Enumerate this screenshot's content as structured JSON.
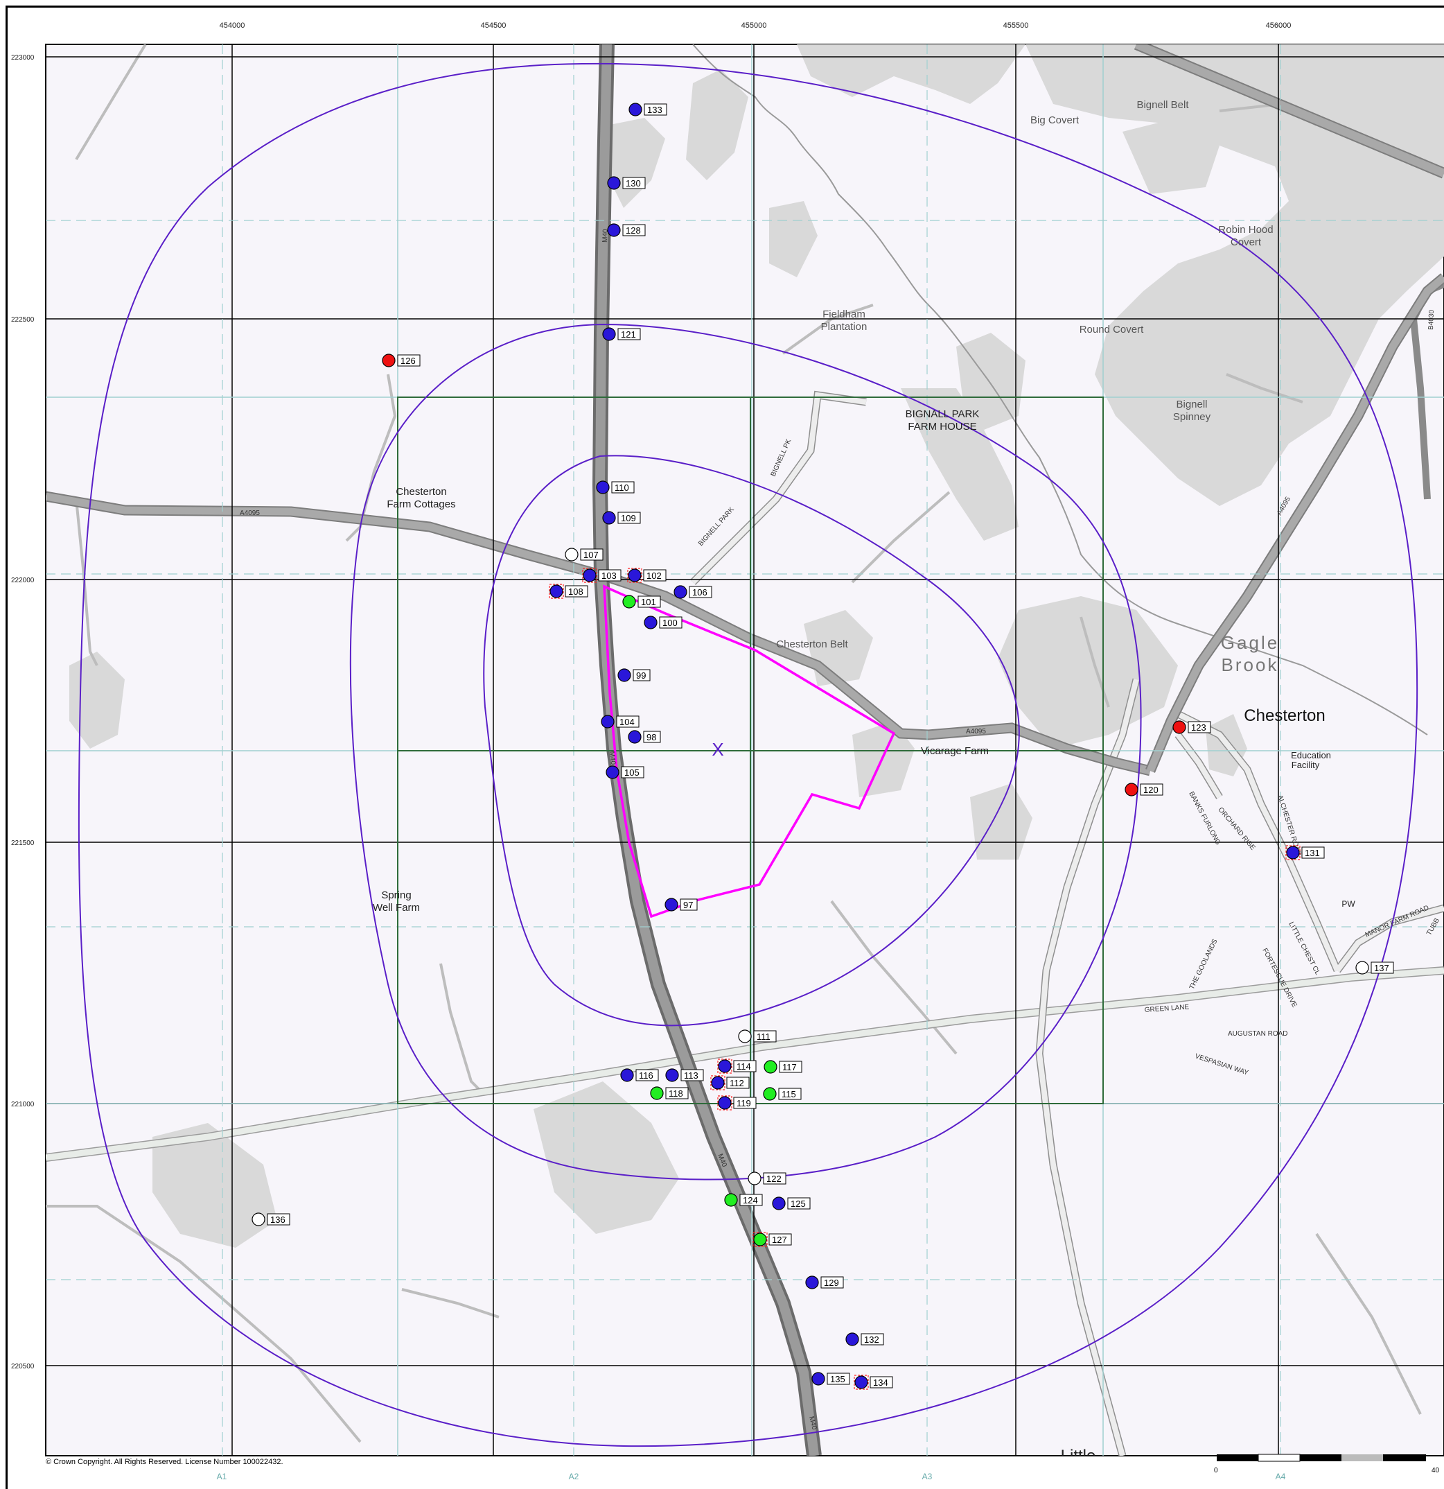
{
  "map": {
    "easting_labels": [
      "454000",
      "454500",
      "455000",
      "455500",
      "456000"
    ],
    "northing_labels": [
      "223000",
      "222500",
      "222000",
      "221500",
      "221000",
      "220500"
    ],
    "column_labels": [
      "A1",
      "A2",
      "A3",
      "A4"
    ],
    "copyright": "© Crown Copyright. All Rights Reserved. License Number 100022432.",
    "scale_label_zero": "0",
    "scale_label_end": "40",
    "site_marker": "X",
    "colors": {
      "site_boundary": "#ff00ff",
      "buffer_rings": "#5a1fc8",
      "grid": "#000000",
      "subgrid": "#9fd0d0",
      "survey_grid": "#2e6b3a",
      "road_major": "#8a8a8a",
      "road_minor": "#dcdcdc",
      "woodland": "#d9d9d9",
      "background": "#f7f5fa"
    },
    "place_names": [
      {
        "key": "big_covert",
        "text": "Big Covert"
      },
      {
        "key": "bignell_belt",
        "text": "Bignell Belt"
      },
      {
        "key": "robin_hood_1",
        "text": "Robin Hood"
      },
      {
        "key": "robin_hood_2",
        "text": "Covert"
      },
      {
        "key": "fieldham_1",
        "text": "Fieldham"
      },
      {
        "key": "fieldham_2",
        "text": "Plantation"
      },
      {
        "key": "round_covert",
        "text": "Round Covert"
      },
      {
        "key": "bignall_park_1",
        "text": "BIGNALL PARK"
      },
      {
        "key": "bignall_park_2",
        "text": "FARM HOUSE"
      },
      {
        "key": "bignell_spinney_1",
        "text": "Bignell"
      },
      {
        "key": "bignell_spinney_2",
        "text": "Spinney"
      },
      {
        "key": "chesterton_farm_1",
        "text": "Chesterton"
      },
      {
        "key": "chesterton_farm_2",
        "text": "Farm Cottages"
      },
      {
        "key": "chesterton_belt",
        "text": "Chesterton Belt"
      },
      {
        "key": "vicarage_farm",
        "text": "Vicarage Farm"
      },
      {
        "key": "gagle",
        "text": "Gagle"
      },
      {
        "key": "brook",
        "text": "Brook"
      },
      {
        "key": "chesterton",
        "text": "Chesterton"
      },
      {
        "key": "education_1",
        "text": "Education"
      },
      {
        "key": "education_2",
        "text": "Facility"
      },
      {
        "key": "spring_1",
        "text": "Spring"
      },
      {
        "key": "spring_2",
        "text": "Well Farm"
      },
      {
        "key": "pw",
        "text": "PW"
      },
      {
        "key": "little",
        "text": "Little"
      }
    ],
    "road_labels": [
      {
        "key": "a4095_w",
        "text": "A4095"
      },
      {
        "key": "a4095_e",
        "text": "A4095"
      },
      {
        "key": "a4095_ne",
        "text": "A4095"
      },
      {
        "key": "m40_n",
        "text": "M40"
      },
      {
        "key": "m40_mid",
        "text": "M40"
      },
      {
        "key": "m40_s",
        "text": "M40"
      },
      {
        "key": "m40_s2",
        "text": "M40"
      },
      {
        "key": "green_lane",
        "text": "GREEN LANE"
      },
      {
        "key": "b4030",
        "text": "B4030"
      },
      {
        "key": "bignell_park_rd",
        "text": "BIGNELL PARK"
      },
      {
        "key": "bignell_pk",
        "text": "BIGNELL PK"
      },
      {
        "key": "manor_farm_rd",
        "text": "MANOR FARM ROAD"
      },
      {
        "key": "orchard_rise",
        "text": "ORCHARD RISE"
      },
      {
        "key": "alchester_rd",
        "text": "ALCHESTER ROAD"
      },
      {
        "key": "vespasian_way",
        "text": "VESPASIAN WAY"
      },
      {
        "key": "augustan_road",
        "text": "AUGUSTAN ROAD"
      },
      {
        "key": "the_goolands",
        "text": "THE GOOLANDS"
      },
      {
        "key": "fortescue",
        "text": "FORTESCUE DRIVE"
      },
      {
        "key": "little_chest",
        "text": "LITTLE CHEST CL"
      },
      {
        "key": "banks_furlong",
        "text": "BANKS FURLONG"
      },
      {
        "key": "tubb",
        "text": "TUBB"
      }
    ],
    "points": [
      {
        "id": "133",
        "color": "blue",
        "marker": false
      },
      {
        "id": "130",
        "color": "blue",
        "marker": false
      },
      {
        "id": "128",
        "color": "blue",
        "marker": false
      },
      {
        "id": "121",
        "color": "blue",
        "marker": false
      },
      {
        "id": "126",
        "color": "red",
        "marker": false
      },
      {
        "id": "110",
        "color": "blue",
        "marker": false
      },
      {
        "id": "109",
        "color": "blue",
        "marker": false
      },
      {
        "id": "107",
        "color": "white",
        "marker": false
      },
      {
        "id": "103",
        "color": "blue",
        "marker": true
      },
      {
        "id": "102",
        "color": "blue",
        "marker": true
      },
      {
        "id": "108",
        "color": "blue",
        "marker": true
      },
      {
        "id": "101",
        "color": "green",
        "marker": false
      },
      {
        "id": "106",
        "color": "blue",
        "marker": false
      },
      {
        "id": "100",
        "color": "blue",
        "marker": false
      },
      {
        "id": "99",
        "color": "blue",
        "marker": false
      },
      {
        "id": "104",
        "color": "blue",
        "marker": false
      },
      {
        "id": "98",
        "color": "blue",
        "marker": false
      },
      {
        "id": "105",
        "color": "blue",
        "marker": false
      },
      {
        "id": "97",
        "color": "blue",
        "marker": false
      },
      {
        "id": "123",
        "color": "red",
        "marker": false
      },
      {
        "id": "120",
        "color": "red",
        "marker": false
      },
      {
        "id": "131",
        "color": "blue",
        "marker": true
      },
      {
        "id": "137",
        "color": "white",
        "marker": false
      },
      {
        "id": "111",
        "color": "white",
        "marker": false
      },
      {
        "id": "116",
        "color": "blue",
        "marker": false
      },
      {
        "id": "113",
        "color": "blue",
        "marker": false
      },
      {
        "id": "114",
        "color": "blue",
        "marker": true
      },
      {
        "id": "117",
        "color": "green",
        "marker": false
      },
      {
        "id": "112",
        "color": "blue",
        "marker": true
      },
      {
        "id": "118",
        "color": "green",
        "marker": false
      },
      {
        "id": "115",
        "color": "green",
        "marker": false
      },
      {
        "id": "119",
        "color": "blue",
        "marker": true
      },
      {
        "id": "122",
        "color": "white",
        "marker": false
      },
      {
        "id": "124",
        "color": "green",
        "marker": false
      },
      {
        "id": "125",
        "color": "blue",
        "marker": false
      },
      {
        "id": "127",
        "color": "green",
        "marker": true
      },
      {
        "id": "136",
        "color": "white",
        "marker": false
      },
      {
        "id": "129",
        "color": "blue",
        "marker": false
      },
      {
        "id": "132",
        "color": "blue",
        "marker": false
      },
      {
        "id": "135",
        "color": "blue",
        "marker": false
      },
      {
        "id": "134",
        "color": "blue",
        "marker": true
      }
    ]
  }
}
